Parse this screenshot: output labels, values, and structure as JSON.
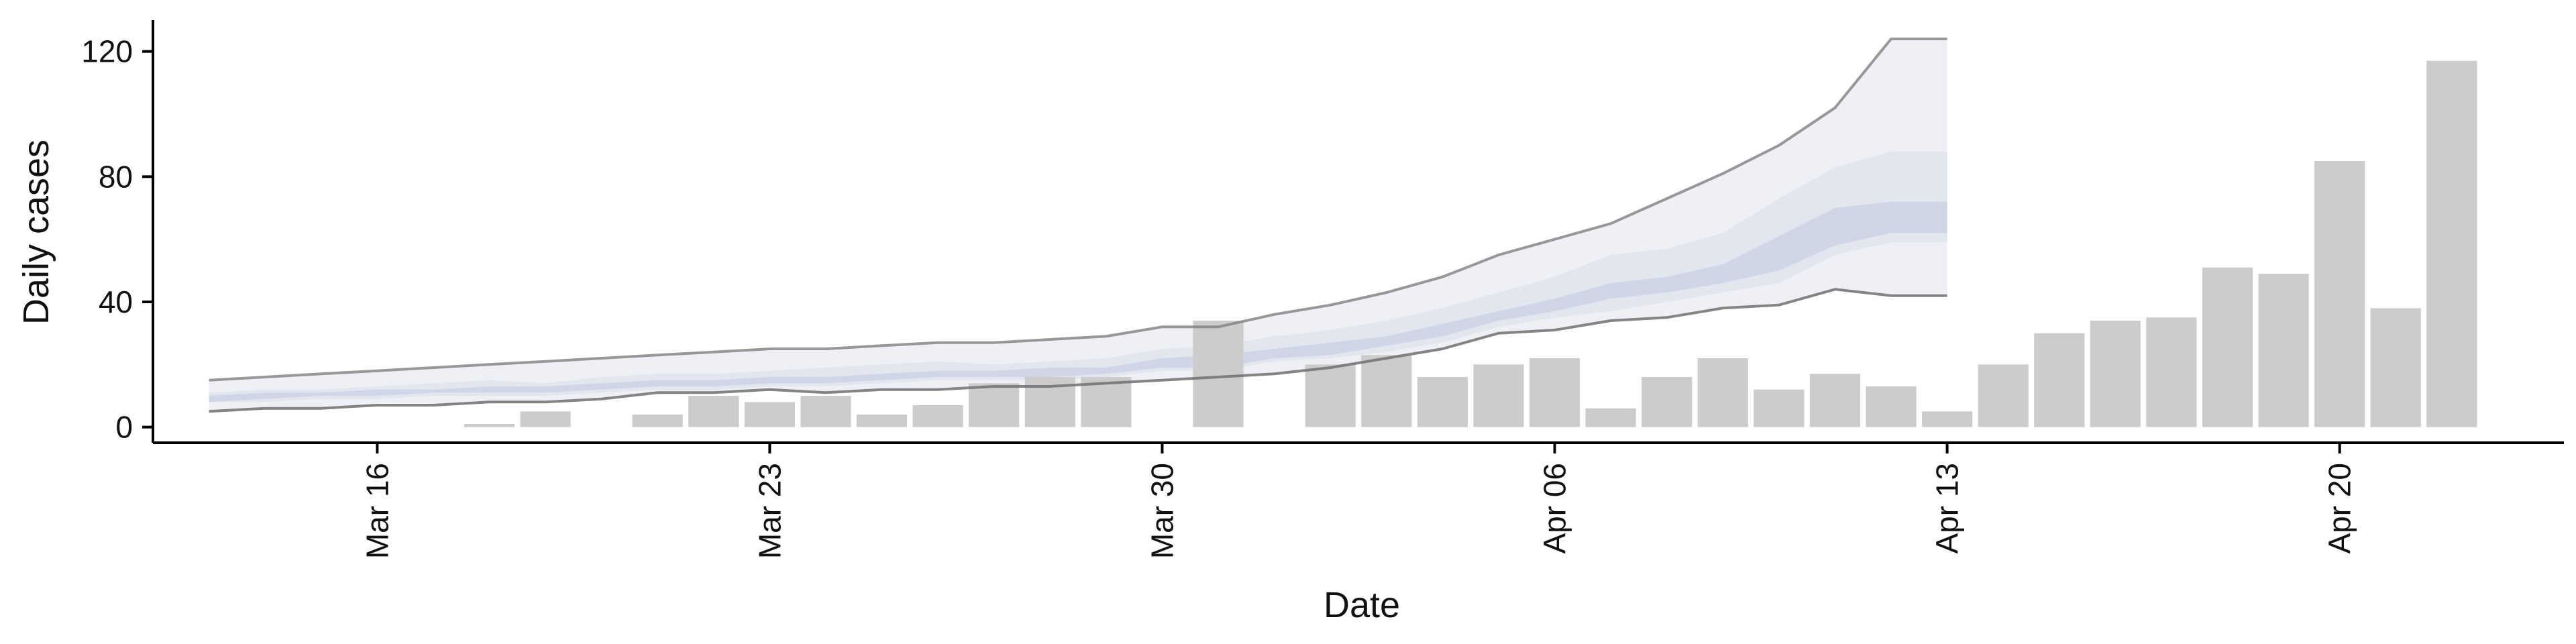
{
  "chart_data": {
    "type": "bar",
    "xlabel": "Date",
    "ylabel": "Daily cases",
    "ylim": [
      -5,
      130
    ],
    "xlim": [
      "2020-03-12",
      "2020-04-24"
    ],
    "grid": false,
    "y_ticks": [
      0,
      40,
      80,
      120
    ],
    "x_ticks": [
      {
        "date": "2020-03-16",
        "label": "Mar 16"
      },
      {
        "date": "2020-03-23",
        "label": "Mar 23"
      },
      {
        "date": "2020-03-30",
        "label": "Mar 30"
      },
      {
        "date": "2020-04-06",
        "label": "Apr 06"
      },
      {
        "date": "2020-04-13",
        "label": "Apr 13"
      },
      {
        "date": "2020-04-20",
        "label": "Apr 20"
      }
    ],
    "colors": {
      "bars": "#cccccc",
      "band_outer": "#eef0f6",
      "band_mid": "#dfe3ee",
      "band_inner": "#c9d0e2",
      "upper_line": "#808080",
      "lower_line": "#707070",
      "axis": "#000000"
    },
    "bars": [
      {
        "date": "2020-03-17",
        "value": 0
      },
      {
        "date": "2020-03-18",
        "value": 1
      },
      {
        "date": "2020-03-19",
        "value": 5
      },
      {
        "date": "2020-03-20",
        "value": 0
      },
      {
        "date": "2020-03-21",
        "value": 4
      },
      {
        "date": "2020-03-22",
        "value": 10
      },
      {
        "date": "2020-03-23",
        "value": 8
      },
      {
        "date": "2020-03-24",
        "value": 10
      },
      {
        "date": "2020-03-25",
        "value": 4
      },
      {
        "date": "2020-03-26",
        "value": 7
      },
      {
        "date": "2020-03-27",
        "value": 14
      },
      {
        "date": "2020-03-28",
        "value": 16
      },
      {
        "date": "2020-03-29",
        "value": 16
      },
      {
        "date": "2020-03-30",
        "value": 0
      },
      {
        "date": "2020-03-31",
        "value": 34
      },
      {
        "date": "2020-04-01",
        "value": 0
      },
      {
        "date": "2020-04-02",
        "value": 20
      },
      {
        "date": "2020-04-03",
        "value": 23
      },
      {
        "date": "2020-04-04",
        "value": 16
      },
      {
        "date": "2020-04-05",
        "value": 20
      },
      {
        "date": "2020-04-06",
        "value": 22
      },
      {
        "date": "2020-04-07",
        "value": 6
      },
      {
        "date": "2020-04-08",
        "value": 16
      },
      {
        "date": "2020-04-09",
        "value": 22
      },
      {
        "date": "2020-04-10",
        "value": 12
      },
      {
        "date": "2020-04-11",
        "value": 17
      },
      {
        "date": "2020-04-12",
        "value": 13
      },
      {
        "date": "2020-04-13",
        "value": 5
      },
      {
        "date": "2020-04-14",
        "value": 20
      },
      {
        "date": "2020-04-15",
        "value": 30
      },
      {
        "date": "2020-04-16",
        "value": 34
      },
      {
        "date": "2020-04-17",
        "value": 35
      },
      {
        "date": "2020-04-18",
        "value": 51
      },
      {
        "date": "2020-04-19",
        "value": 49
      },
      {
        "date": "2020-04-20",
        "value": 85
      },
      {
        "date": "2020-04-21",
        "value": 38
      },
      {
        "date": "2020-04-22",
        "value": 117
      }
    ],
    "estimate": {
      "dates": [
        "2020-03-13",
        "2020-03-14",
        "2020-03-15",
        "2020-03-16",
        "2020-03-17",
        "2020-03-18",
        "2020-03-19",
        "2020-03-20",
        "2020-03-21",
        "2020-03-22",
        "2020-03-23",
        "2020-03-24",
        "2020-03-25",
        "2020-03-26",
        "2020-03-27",
        "2020-03-28",
        "2020-03-29",
        "2020-03-30",
        "2020-03-31",
        "2020-04-01",
        "2020-04-02",
        "2020-04-03",
        "2020-04-04",
        "2020-04-05",
        "2020-04-06",
        "2020-04-07",
        "2020-04-08",
        "2020-04-09",
        "2020-04-10",
        "2020-04-11",
        "2020-04-12",
        "2020-04-13"
      ],
      "upper": [
        15,
        16,
        17,
        18,
        19,
        20,
        21,
        22,
        23,
        24,
        25,
        25,
        26,
        27,
        27,
        28,
        29,
        32,
        32,
        36,
        39,
        43,
        48,
        55,
        60,
        65,
        73,
        81,
        90,
        102,
        124,
        124
      ],
      "lower": [
        5,
        6,
        6,
        7,
        7,
        8,
        8,
        9,
        11,
        11,
        12,
        11,
        12,
        12,
        13,
        13,
        14,
        15,
        16,
        17,
        19,
        22,
        25,
        30,
        31,
        34,
        35,
        38,
        39,
        44,
        42,
        42
      ],
      "q75_hi": [
        11,
        12,
        12,
        13,
        14,
        15,
        14,
        16,
        17,
        17,
        18,
        19,
        20,
        21,
        20,
        21,
        22,
        25,
        26,
        29,
        31,
        34,
        38,
        43,
        48,
        55,
        57,
        62,
        73,
        83,
        88,
        88
      ],
      "q25_lo": [
        8,
        8,
        9,
        9,
        10,
        10,
        10,
        11,
        12,
        12,
        13,
        13,
        14,
        15,
        15,
        15,
        16,
        18,
        18,
        21,
        22,
        24,
        27,
        32,
        35,
        37,
        40,
        43,
        46,
        55,
        59,
        59
      ],
      "q60_hi": [
        10,
        11,
        11,
        12,
        12,
        13,
        13,
        14,
        15,
        15,
        16,
        16,
        17,
        18,
        18,
        19,
        19,
        22,
        23,
        25,
        27,
        29,
        33,
        37,
        41,
        46,
        48,
        52,
        61,
        70,
        72,
        72
      ],
      "q40_lo": [
        8,
        9,
        10,
        10,
        11,
        11,
        11,
        12,
        13,
        13,
        14,
        14,
        15,
        16,
        16,
        16,
        17,
        19,
        19,
        22,
        23,
        26,
        29,
        34,
        37,
        41,
        43,
        46,
        50,
        58,
        62,
        62
      ]
    }
  }
}
